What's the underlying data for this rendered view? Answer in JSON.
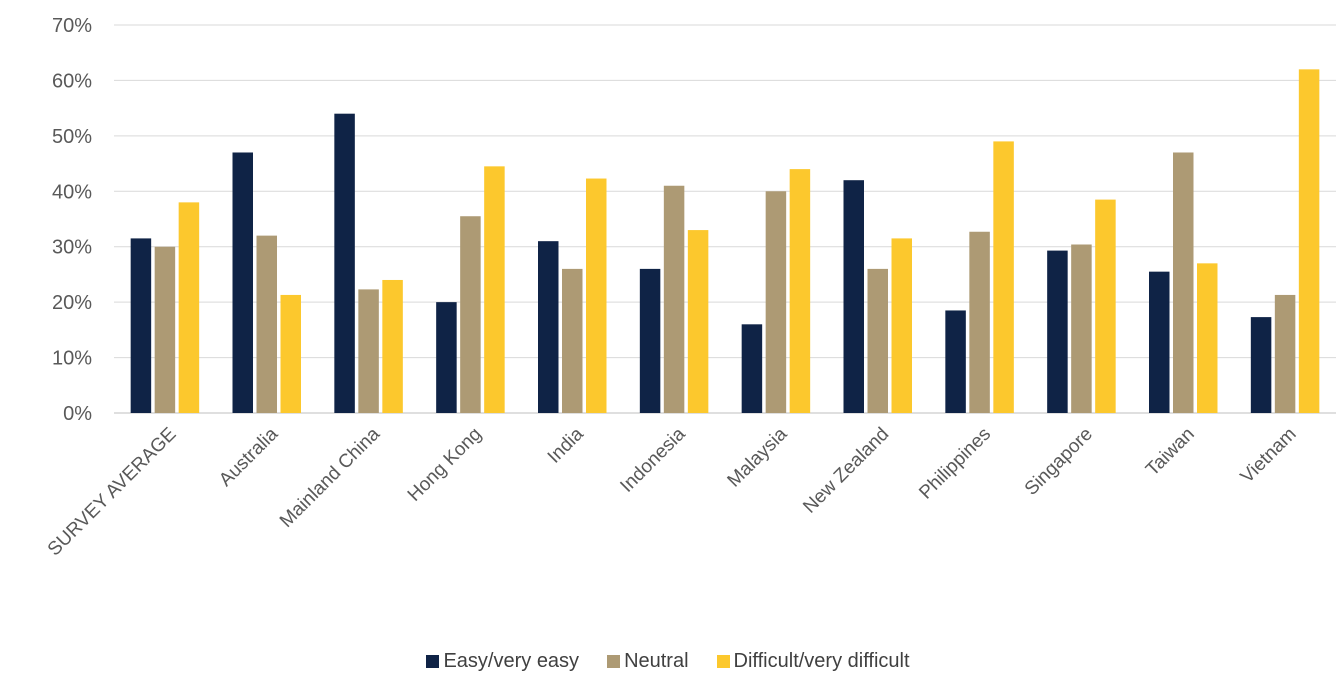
{
  "chart_data": {
    "type": "bar",
    "categories": [
      "SURVEY AVERAGE",
      "Australia",
      "Mainland China",
      "Hong Kong",
      "India",
      "Indonesia",
      "Malaysia",
      "New Zealand",
      "Philippines",
      "Singapore",
      "Taiwan",
      "Vietnam"
    ],
    "series": [
      {
        "name": "Easy/very easy",
        "color": "#0f2346",
        "values": [
          31.5,
          47,
          54,
          20,
          31,
          26,
          16,
          42,
          18.5,
          29.3,
          25.5,
          17.3
        ]
      },
      {
        "name": "Neutral",
        "color": "#ad9a74",
        "values": [
          30,
          32,
          22.3,
          35.5,
          26,
          41,
          40,
          26,
          32.7,
          30.4,
          47,
          21.3
        ]
      },
      {
        "name": "Difficult/very difficult",
        "color": "#fcc82d",
        "values": [
          38,
          21.3,
          24,
          44.5,
          42.3,
          33,
          44,
          31.5,
          49,
          38.5,
          27,
          62
        ]
      }
    ],
    "yticks": [
      "0%",
      "10%",
      "20%",
      "30%",
      "40%",
      "50%",
      "60%",
      "70%"
    ],
    "ylim": [
      0,
      70
    ],
    "grid": true,
    "legend_position": "bottom"
  }
}
